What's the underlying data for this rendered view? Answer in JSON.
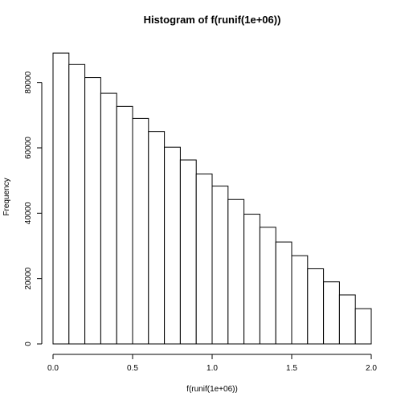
{
  "chart_data": {
    "type": "bar",
    "title": "Histogram of f(runif(1e+06))",
    "xlabel": "f(runif(1e+06))",
    "ylabel": "Frequency",
    "bin_edges": [
      0.0,
      0.1,
      0.2,
      0.3,
      0.4,
      0.5,
      0.6,
      0.7,
      0.8,
      0.9,
      1.0,
      1.1,
      1.2,
      1.3,
      1.4,
      1.5,
      1.6,
      1.7,
      1.8,
      1.9,
      2.0
    ],
    "values": [
      89000,
      85500,
      81500,
      76700,
      72700,
      69000,
      65000,
      60200,
      56300,
      52000,
      48300,
      44200,
      39700,
      35700,
      31200,
      27000,
      23000,
      19000,
      15000,
      10800
    ],
    "xlim": [
      0,
      2
    ],
    "ylim": [
      0,
      90000
    ],
    "x_ticks": [
      {
        "value": 0.0,
        "label": "0.0"
      },
      {
        "value": 0.5,
        "label": "0.5"
      },
      {
        "value": 1.0,
        "label": "1.0"
      },
      {
        "value": 1.5,
        "label": "1.5"
      },
      {
        "value": 2.0,
        "label": "2.0"
      }
    ],
    "y_ticks": [
      {
        "value": 0,
        "label": "0"
      },
      {
        "value": 20000,
        "label": "20000"
      },
      {
        "value": 40000,
        "label": "40000"
      },
      {
        "value": 60000,
        "label": "60000"
      },
      {
        "value": 80000,
        "label": "80000"
      }
    ],
    "bar_fill": "#ffffff",
    "bar_stroke": "#000000",
    "grid": false,
    "legend": "none"
  }
}
